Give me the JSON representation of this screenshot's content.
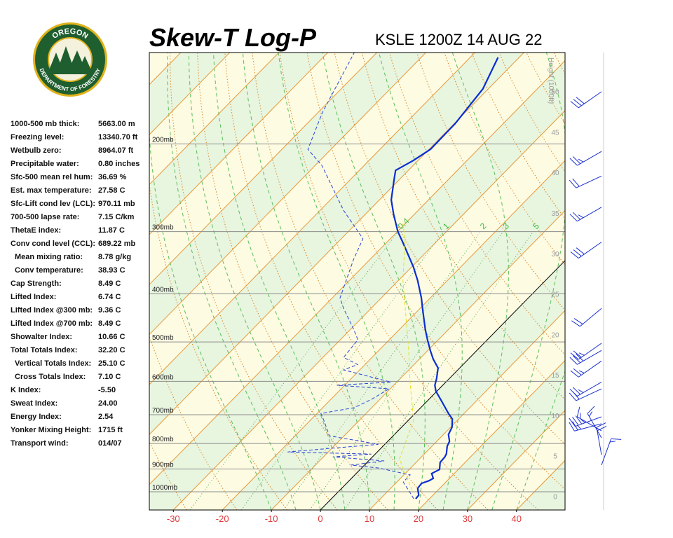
{
  "logo": {
    "top": "OREGON",
    "bottom": "DEPARTMENT OF FORESTRY"
  },
  "panel": {
    "rows": [
      [
        "1000-500 mb thick:",
        "5663.00 m"
      ],
      [
        "Freezing level:",
        "13340.70 ft"
      ],
      [
        "Wetbulb zero:",
        "8964.07 ft"
      ],
      [
        "Precipitable water:",
        "0.80 inches"
      ],
      [
        "Sfc-500 mean rel hum:",
        "36.69 %"
      ],
      [
        "Est. max temperature:",
        "27.58 C"
      ],
      [
        "Sfc-Lift cond lev (LCL):",
        "970.11 mb"
      ],
      [
        "700-500 lapse rate:",
        "7.15 C/km"
      ],
      [
        "ThetaE index:",
        "11.87 C"
      ],
      [
        "Conv cond level (CCL):",
        "689.22 mb"
      ],
      [
        "Mean mixing ratio:",
        "8.78 g/kg"
      ],
      [
        "Conv temperature:",
        "38.93 C"
      ],
      [
        "Cap Strength:",
        "8.49 C"
      ],
      [
        "Lifted Index:",
        "6.74 C"
      ],
      [
        "Lifted Index @300 mb:",
        "9.36 C"
      ],
      [
        "Lifted Index @700 mb:",
        "8.49 C"
      ],
      [
        "Showalter Index:",
        "10.66 C"
      ],
      [
        "Total Totals Index:",
        "32.20 C"
      ],
      [
        "Vertical Totals Index:",
        "25.10 C"
      ],
      [
        "Cross Totals Index:",
        "7.10 C"
      ],
      [
        "K Index:",
        "-5.50"
      ],
      [
        "Sweat Index:",
        "24.00"
      ],
      [
        "Energy Index:",
        "2.54"
      ],
      [
        "Yonker Mixing Height:",
        "1715 ft"
      ],
      [
        "Transport wind:",
        "014/07"
      ]
    ]
  },
  "chart_data": {
    "type": "skew-t",
    "title": "Skew-T Log-P",
    "subtitle": "KSLE 1200Z 14 AUG 22",
    "xlim": [
      -34.9,
      49.9
    ],
    "xticks": [
      -30,
      -20,
      -10,
      0,
      10,
      20,
      30,
      40
    ],
    "ylim": [
      1088,
      131
    ],
    "log_y": true,
    "yticks": [
      {
        "value": 200,
        "label": "200mb"
      },
      {
        "value": 300,
        "label": "300mb"
      },
      {
        "value": 400,
        "label": "400mb"
      },
      {
        "value": 500,
        "label": "500mb"
      },
      {
        "value": 600,
        "label": "600mb"
      },
      {
        "value": 700,
        "label": "700mb"
      },
      {
        "value": 800,
        "label": "800mb"
      },
      {
        "value": 900,
        "label": "900mb"
      },
      {
        "value": 1000,
        "label": "1000mb"
      }
    ],
    "y2label": "Height (1000ft)",
    "y2lim": [
      -1.6,
      54.9
    ],
    "y2ticks": [
      0,
      5,
      10,
      15,
      20,
      25,
      30,
      35,
      40,
      45,
      50
    ],
    "mixing_ratios": [
      0.4,
      1,
      2,
      3,
      5
    ],
    "series": [
      {
        "color": "#0a2ed1",
        "dash": false,
        "pressure": [
          1033,
          1016,
          984,
          962,
          950,
          940,
          919,
          902,
          873,
          853,
          840,
          810,
          792,
          767,
          742,
          714,
          696,
          657,
          628,
          611,
          592,
          564,
          541,
          520,
          495,
          472,
          428,
          408,
          376,
          353,
          315,
          300,
          277,
          259,
          235,
          226,
          216,
          205,
          182,
          155,
          134
        ],
        "values": [
          17.2,
          17.1,
          15.5,
          15.3,
          16.3,
          16.7,
          15.4,
          16.2,
          14.9,
          14.8,
          14.5,
          13.1,
          12.6,
          11.0,
          10.3,
          8.7,
          6.8,
          2.9,
          -0.2,
          -1.6,
          -2.6,
          -4.4,
          -7.2,
          -9.5,
          -12.2,
          -14.7,
          -19.5,
          -21.8,
          -26.1,
          -29.7,
          -36.8,
          -39.9,
          -44.2,
          -47.6,
          -51.2,
          -52.6,
          -51.0,
          -49.7,
          -49.8,
          -51.1,
          -54.3
        ]
      },
      {
        "color": "#2a44d8",
        "dash": true,
        "pressure": [
          1033,
          994,
          956,
          925,
          896,
          884,
          867,
          851,
          840,
          832,
          803,
          772,
          719,
          696,
          678,
          652,
          621,
          611,
          602,
          569,
          555,
          537,
          495,
          472,
          428,
          408,
          342,
          310,
          272,
          221,
          205,
          173,
          131
        ],
        "values": [
          16.8,
          14.1,
          11.3,
          11.3,
          3.5,
          -2.8,
          3.2,
          -8.1,
          -0.8,
          -18.3,
          -1.3,
          -13.0,
          -17.2,
          -19.2,
          -13.6,
          -11.7,
          -10.2,
          -21.6,
          -11.2,
          -23.3,
          -21.5,
          -25.8,
          -26.4,
          -29.3,
          -35.6,
          -38.4,
          -43.3,
          -45.6,
          -55.2,
          -68.6,
          -74.7,
          -79.1,
          -84.6
        ]
      },
      {
        "color": "#e6e21e",
        "dash": true,
        "pressure": [
          994,
          859,
          719,
          602,
          520,
          376,
          310,
          286
        ],
        "values": [
          14.8,
          5.9,
          1.1,
          -7.3,
          -13.9,
          -29.1,
          -37.0,
          -41.0
        ]
      }
    ],
    "wind": {
      "pressure": [
        157,
        207,
        232,
        268,
        315,
        428,
        503,
        520,
        546,
        602,
        621,
        707,
        730,
        754,
        779,
        843,
        884
      ],
      "direction": [
        235,
        240,
        245,
        240,
        235,
        230,
        235,
        240,
        235,
        240,
        245,
        250,
        255,
        300,
        330,
        350,
        20
      ],
      "speed": [
        30,
        25,
        20,
        25,
        30,
        20,
        25,
        30,
        25,
        25,
        20,
        35,
        25,
        15,
        15,
        20,
        15
      ]
    }
  }
}
